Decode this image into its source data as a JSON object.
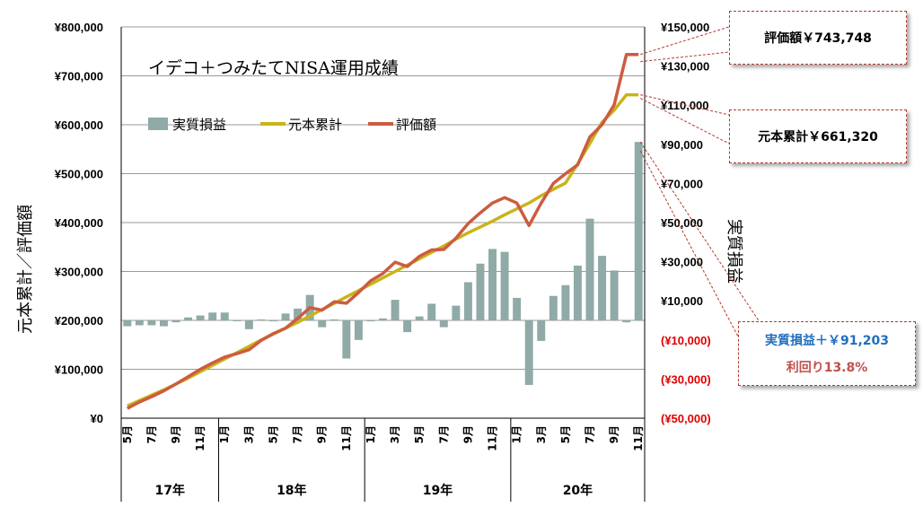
{
  "chart_data": {
    "type": "bar+line",
    "title": "イデコ＋つみたてNISA運用成績",
    "ylabel_left": "元本累計／評価額",
    "ylabel_right": "実質損益",
    "ylim_left": [
      0,
      800000
    ],
    "ylim_right": [
      -50000,
      150000
    ],
    "yticks_left": [
      "¥0",
      "¥100,000",
      "¥200,000",
      "¥300,000",
      "¥400,000",
      "¥500,000",
      "¥600,000",
      "¥700,000",
      "¥800,000"
    ],
    "yticks_right": [
      "(¥50,000)",
      "(¥30,000)",
      "(¥10,000)",
      "¥10,000",
      "¥30,000",
      "¥50,000",
      "¥70,000",
      "¥90,000",
      "¥110,000",
      "¥130,000",
      "¥150,000"
    ],
    "month_labels": [
      "5月",
      "",
      "7月",
      "",
      "9月",
      "",
      "11月",
      "",
      "1月",
      "",
      "3月",
      "",
      "5月",
      "",
      "7月",
      "",
      "9月",
      "",
      "11月",
      "",
      "1月",
      "",
      "3月",
      "",
      "5月",
      "",
      "7月",
      "",
      "9月",
      "",
      "11月",
      "",
      "1月",
      "",
      "3月",
      "",
      "5月",
      "",
      "7月",
      "",
      "9月",
      "",
      "11月"
    ],
    "year_groups": [
      {
        "label": "17年",
        "count": 8
      },
      {
        "label": "18年",
        "count": 12
      },
      {
        "label": "19年",
        "count": 12
      },
      {
        "label": "20年",
        "count": 11
      }
    ],
    "legend": [
      {
        "label": "実質損益",
        "color": "#8faaa7",
        "kind": "bar"
      },
      {
        "label": "元本累計",
        "color": "#c9b417",
        "kind": "line"
      },
      {
        "label": "評価額",
        "color": "#cc5c40",
        "kind": "line"
      }
    ],
    "series": [
      {
        "name": "実質損益",
        "axis": "right",
        "color": "#8faaa7",
        "values": [
          -3000,
          -2500,
          -2500,
          -3000,
          -1000,
          1500,
          2500,
          4000,
          4000,
          0,
          -4500,
          500,
          -500,
          3500,
          6000,
          13000,
          -3500,
          500,
          -19500,
          -10000,
          -500,
          1000,
          10500,
          -6000,
          2000,
          8500,
          -3500,
          7500,
          19500,
          29000,
          36500,
          35000,
          11500,
          -33000,
          -10500,
          12500,
          18000,
          28000,
          52000,
          33000,
          25500,
          -1000,
          91203
        ]
      },
      {
        "name": "元本累計",
        "axis": "left",
        "color": "#c9b417",
        "values": [
          25000,
          36000,
          47000,
          58000,
          70000,
          82000,
          95000,
          108000,
          121000,
          134000,
          147000,
          160000,
          172000,
          184000,
          196000,
          209000,
          222000,
          235000,
          248000,
          261000,
          274000,
          287000,
          300000,
          313000,
          326000,
          339000,
          352000,
          366000,
          379000,
          391000,
          403000,
          416000,
          428000,
          440000,
          455000,
          468000,
          481000,
          520000,
          562000,
          605000,
          630000,
          661320,
          661320
        ]
      },
      {
        "name": "評価額",
        "axis": "left",
        "color": "#cc5c40",
        "values": [
          20000,
          33000,
          44000,
          56000,
          70000,
          85000,
          100000,
          113000,
          125000,
          132000,
          140000,
          159000,
          173000,
          184000,
          204000,
          226000,
          221000,
          238000,
          235000,
          257000,
          281000,
          296000,
          319000,
          310000,
          331000,
          344000,
          345000,
          368000,
          398000,
          420000,
          440000,
          451000,
          440000,
          394000,
          440000,
          480000,
          500000,
          518000,
          575000,
          600000,
          641000,
          743748,
          743748
        ]
      }
    ]
  },
  "callouts": {
    "value": "評価額￥743,748",
    "principal": "元本累計￥661,320",
    "profit": "実質損益＋￥91,203",
    "yield": "利回り13.8%"
  }
}
